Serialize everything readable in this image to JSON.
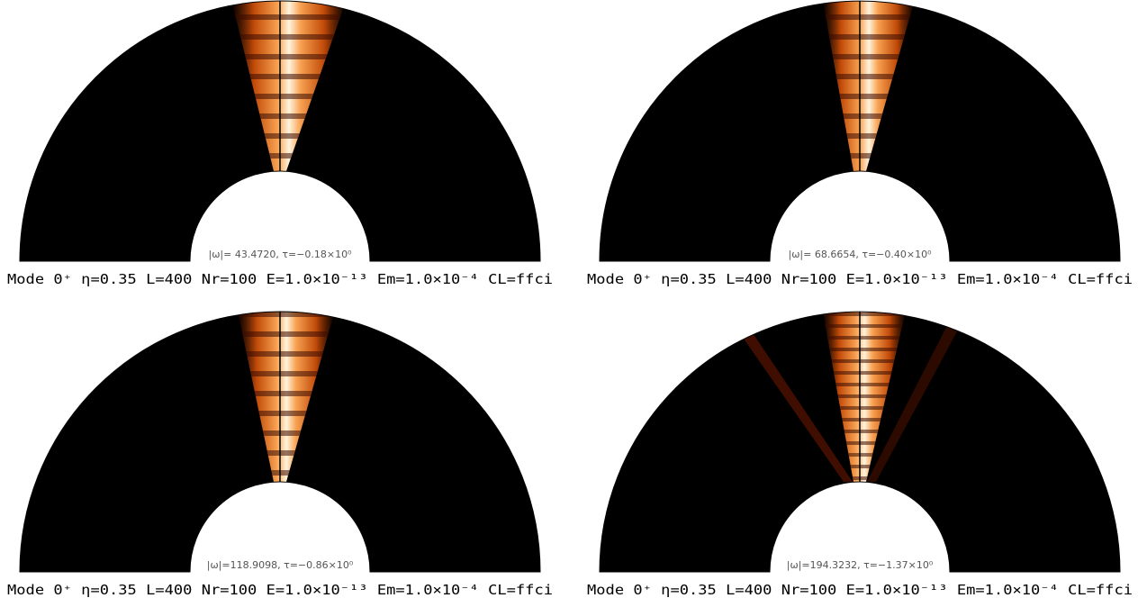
{
  "panels": [
    {
      "info": "|ω|= 43.4720, τ=−0.18×10⁰",
      "caption": "Mode 0⁺ η=0.35 L=400 Nr=100 E=1.0×10⁻¹³ Em=1.0×10⁻⁴ CL=ffci"
    },
    {
      "info": "|ω|= 68.6654, τ=−0.40×10⁰",
      "caption": "Mode 0⁺ η=0.35 L=400 Nr=100 E=1.0×10⁻¹³ Em=1.0×10⁻⁴ CL=ffci"
    },
    {
      "info": "|ω|=118.9098, τ=−0.86×10⁰",
      "caption": "Mode 0⁺ η=0.35 L=400 Nr=100 E=1.0×10⁻¹³ Em=1.0×10⁻⁴ CL=ffci"
    },
    {
      "info": "|ω|=194.3232, τ=−1.37×10⁰",
      "caption": "Mode 0⁺ η=0.35 L=400 Nr=100 E=1.0×10⁻¹³ Em=1.0×10⁻⁴ CL=ffci"
    }
  ]
}
